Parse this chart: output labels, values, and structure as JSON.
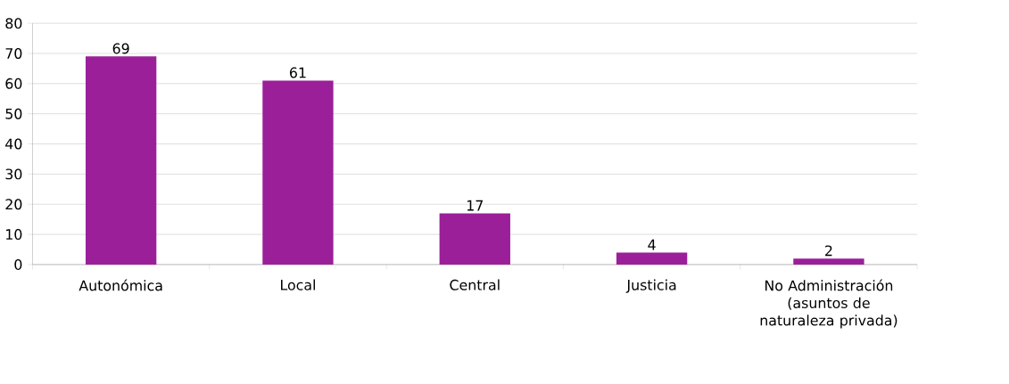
{
  "chart_data": {
    "type": "bar",
    "categories": [
      "Autonómica",
      "Local",
      "Central",
      "Justicia",
      "No Administración (asuntos de naturaleza privada)"
    ],
    "values": [
      69,
      61,
      17,
      4,
      2
    ],
    "color": "#9b1f99",
    "ylim": [
      0,
      80
    ],
    "yticks": [
      0,
      10,
      20,
      30,
      40,
      50,
      60,
      70,
      80
    ],
    "grid": "y",
    "data_labels": true
  }
}
